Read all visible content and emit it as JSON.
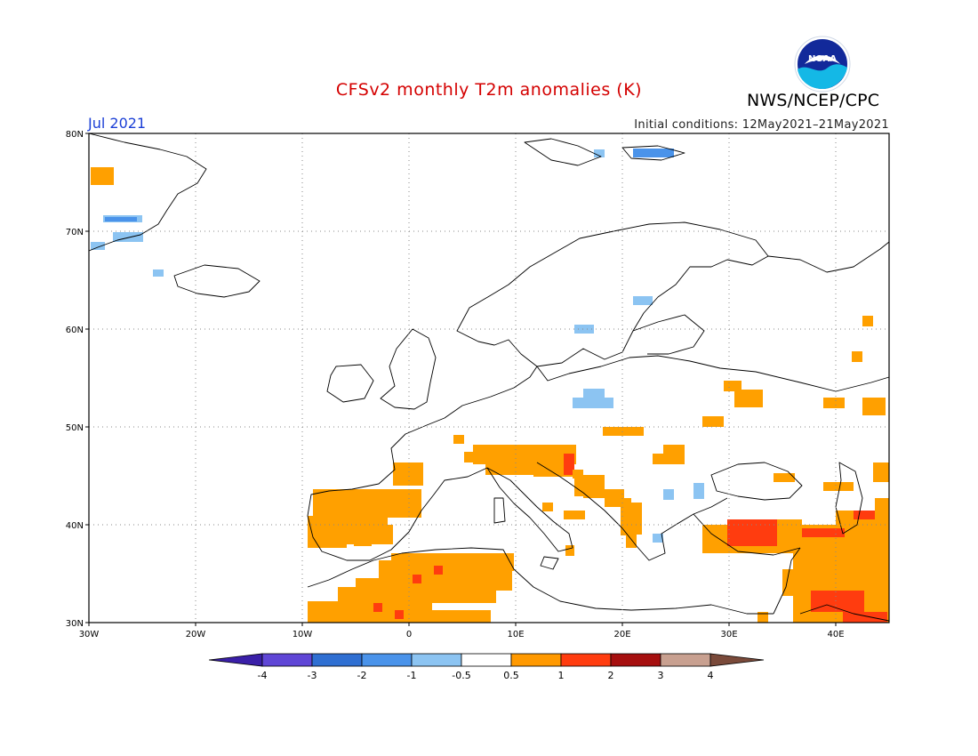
{
  "header": {
    "title": "CFSv2 monthly T2m anomalies (K)",
    "month": "Jul 2021",
    "initial_conditions": "Initial conditions: 12May2021–21May2021",
    "agency": "NWS/NCEP/CPC",
    "logo_text": "NOAA"
  },
  "map": {
    "lon_ticks": [
      "30W",
      "20W",
      "10W",
      "0",
      "10E",
      "20E",
      "30E",
      "40E"
    ],
    "lat_ticks": [
      "80N",
      "70N",
      "60N",
      "50N",
      "40N",
      "30N"
    ],
    "grid": "dotted"
  },
  "colorbar": {
    "labels": [
      "-4",
      "-3",
      "-2",
      "-1",
      "-0.5",
      "0.5",
      "1",
      "2",
      "3",
      "4"
    ],
    "colors": [
      "#3a1fa8",
      "#5f46d6",
      "#2f6fd2",
      "#4a93ea",
      "#8cc4f2",
      "#ffffff",
      "#ff9900",
      "#ff3c0f",
      "#a60f0f",
      "#c8a090",
      "#7a4a3a"
    ],
    "colors_note_order": "leftmost arrow through rightmost arrow"
  },
  "anomaly_colors": {
    "orange": "#ffa000",
    "red": "#ff3c0f",
    "lightblue": "#8cc4f2",
    "blue": "#4a93ea",
    "darkblue": "#2f6fd2"
  }
}
